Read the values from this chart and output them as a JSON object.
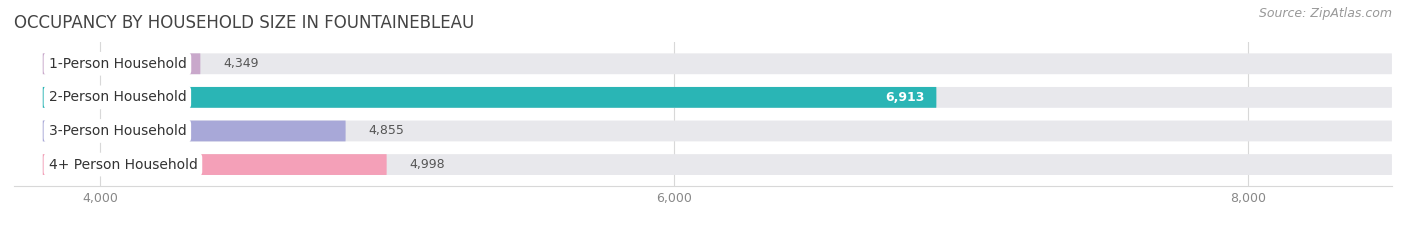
{
  "title": "OCCUPANCY BY HOUSEHOLD SIZE IN FOUNTAINEBLEAU",
  "source": "Source: ZipAtlas.com",
  "categories": [
    "1-Person Household",
    "2-Person Household",
    "3-Person Household",
    "4+ Person Household"
  ],
  "values": [
    4349,
    6913,
    4855,
    4998
  ],
  "bar_colors": [
    "#c9a8cb",
    "#2ab5b5",
    "#a8a8d8",
    "#f4a0b8"
  ],
  "bar_bg_color": "#e8e8ec",
  "xlim_min": 3700,
  "xlim_max": 8500,
  "xaxis_min": 3800,
  "xticks": [
    4000,
    6000,
    8000
  ],
  "figsize": [
    14.06,
    2.33
  ],
  "dpi": 100,
  "bar_height": 0.62,
  "value_color_inside": "#ffffff",
  "value_color_outside": "#555555",
  "title_fontsize": 12,
  "label_fontsize": 10,
  "value_fontsize": 9,
  "tick_fontsize": 9,
  "source_fontsize": 9,
  "bg_color": "#ffffff",
  "grid_color": "#d8d8d8",
  "title_color": "#444444",
  "tick_color": "#888888"
}
